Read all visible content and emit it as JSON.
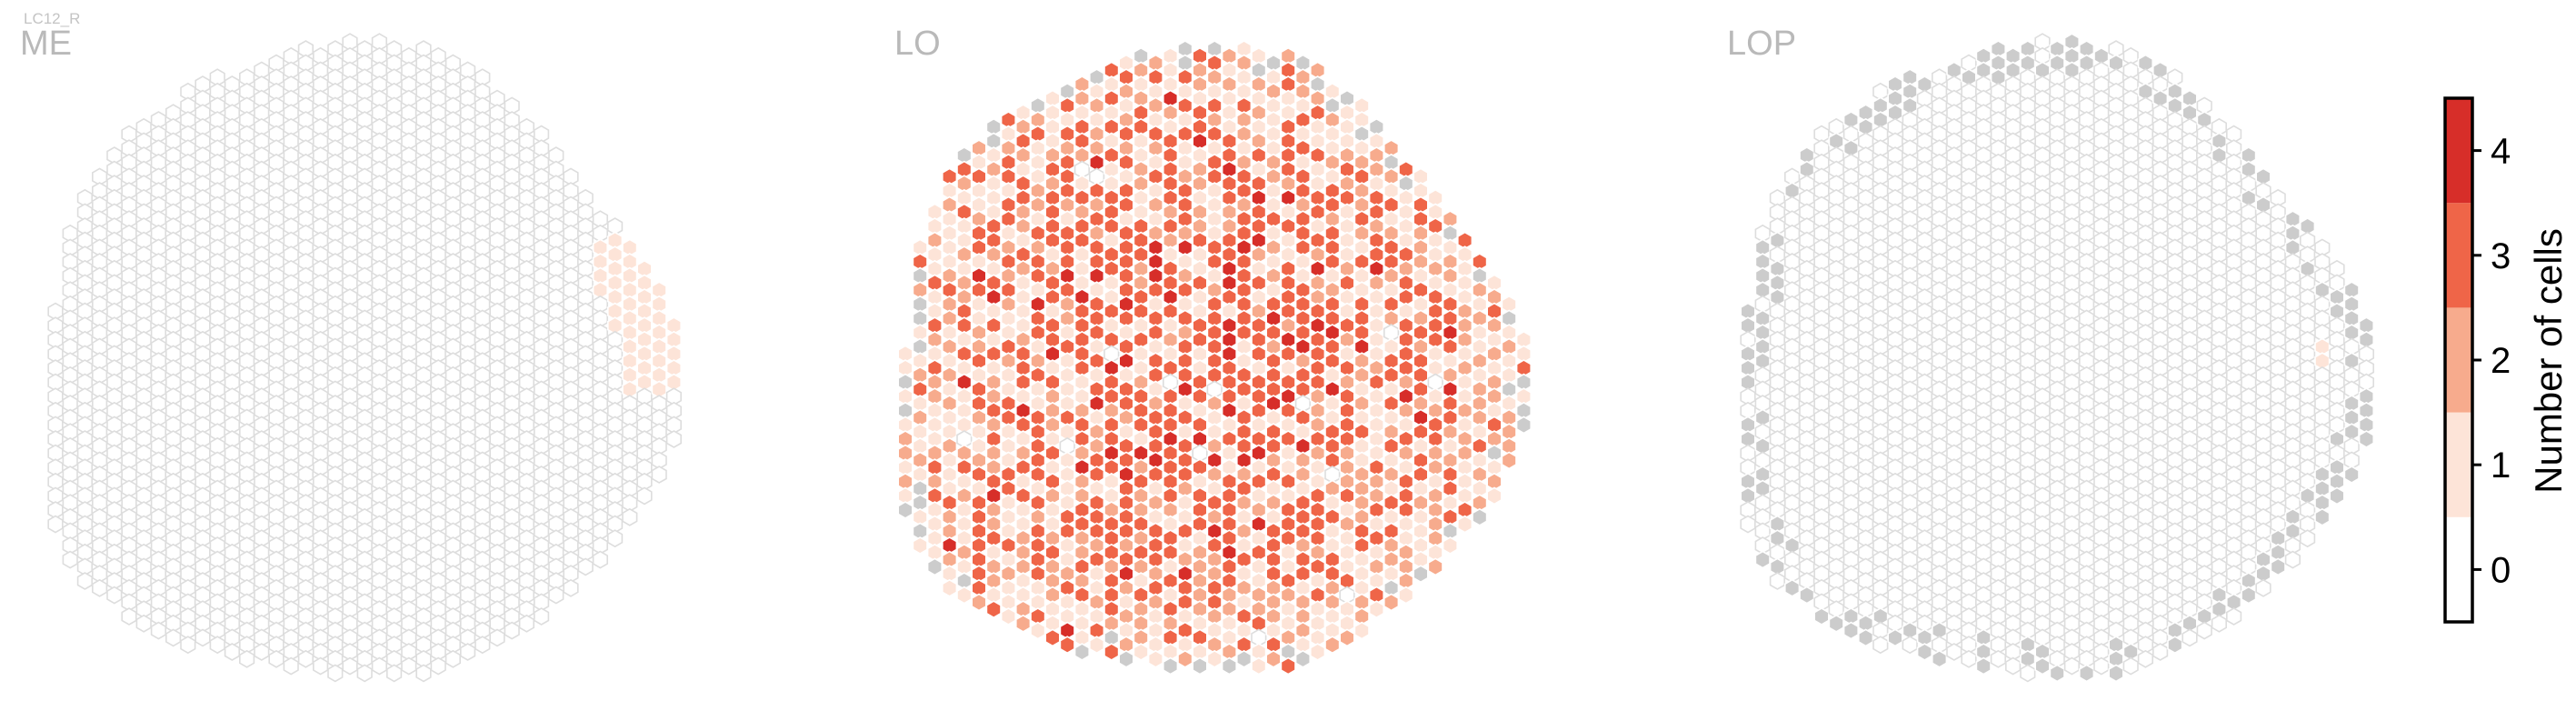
{
  "figure": {
    "cell_type": "LC12_R",
    "panels": [
      {
        "name": "ME"
      },
      {
        "name": "LO"
      },
      {
        "name": "LOP"
      }
    ]
  },
  "colors": {
    "empty_fill": "#ffffff",
    "empty_stroke": "#dddddd",
    "outside_fill": "#cccccc",
    "colorbar_bins": [
      "#ffffff",
      "#fde4d8",
      "#f7ab8d",
      "#ef6548",
      "#d72e29"
    ],
    "panel_label": "#b9b9b9"
  },
  "colorbar": {
    "label": "Number of cells",
    "ticks": [
      "0",
      "1",
      "2",
      "3",
      "4"
    ]
  },
  "chart_data": {
    "type": "heatmap",
    "grid": "hexagonal column lattice",
    "colorbar_label": "Number of cells",
    "colorbar_range": [
      -0.5,
      4.5
    ],
    "colorbar_ticks": [
      0,
      1,
      2,
      3,
      4
    ],
    "panels": [
      {
        "name": "ME",
        "count_1_column_fraction": 0.03,
        "max_count": 1,
        "count_1_region": "right edge, upper-middle"
      },
      {
        "name": "LO",
        "count_distribution": {
          "0": 0.02,
          "1": 0.15,
          "2": 0.27,
          "3": 0.4,
          "4": 0.11,
          "outside": 0.05
        },
        "max_count": 4
      },
      {
        "name": "LOP",
        "count_1_columns": 1,
        "max_count": 1,
        "outside_region": "ring along the boundary"
      }
    ]
  }
}
